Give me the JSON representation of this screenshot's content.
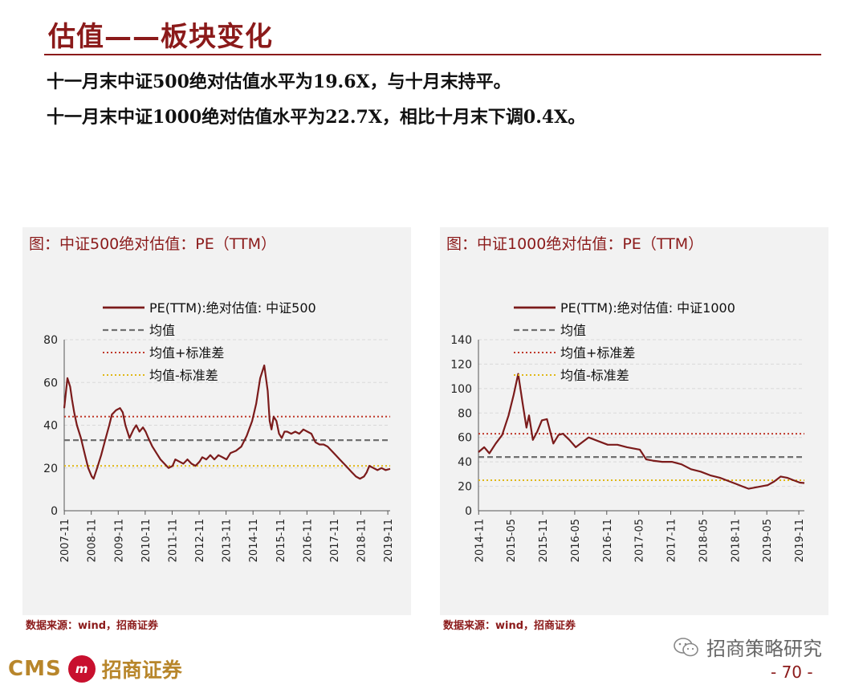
{
  "header": {
    "title": "估值——板块变化",
    "bullet1": "十一月末中证500绝对估值水平为19.6X，与十月末持平。",
    "bullet2": "十一月末中证1000绝对估值水平为22.7X，相比十月末下调0.4X。"
  },
  "colors": {
    "accent": "#8b1a1a",
    "series": "#7b1b1b",
    "mean": "#707070",
    "upper": "#c0392b",
    "lower": "#e0b818"
  },
  "chart_data": [
    {
      "type": "line",
      "title": "图：中证500绝对估值：PE（TTM）",
      "source": "数据来源：wind，招商证券",
      "legend": [
        "PE(TTM):绝对估值: 中证500",
        "均值",
        "均值+标准差",
        "均值-标准差"
      ],
      "legend_placement": "top",
      "ylim": [
        0,
        80
      ],
      "yticks": [
        0,
        20,
        40,
        60,
        80
      ],
      "xticks": [
        "2007-11",
        "2008-11",
        "2009-11",
        "2010-11",
        "2011-11",
        "2012-11",
        "2013-11",
        "2014-11",
        "2015-11",
        "2016-11",
        "2017-11",
        "2018-11",
        "2019-11"
      ],
      "x_range": [
        2007.83,
        2019.92
      ],
      "series": [
        {
          "name": "PE(TTM):绝对估值: 中证500",
          "x": [
            2007.83,
            2007.95,
            2008.05,
            2008.12,
            2008.2,
            2008.3,
            2008.45,
            2008.6,
            2008.72,
            2008.85,
            2008.92,
            2009.05,
            2009.2,
            2009.35,
            2009.5,
            2009.6,
            2009.75,
            2009.9,
            2010.0,
            2010.1,
            2010.25,
            2010.4,
            2010.5,
            2010.62,
            2010.75,
            2010.85,
            2010.95,
            2011.1,
            2011.25,
            2011.4,
            2011.55,
            2011.7,
            2011.85,
            2011.95,
            2012.1,
            2012.25,
            2012.4,
            2012.55,
            2012.7,
            2012.85,
            2012.95,
            2013.1,
            2013.25,
            2013.4,
            2013.55,
            2013.7,
            2013.85,
            2014.0,
            2014.2,
            2014.4,
            2014.6,
            2014.8,
            2014.95,
            2015.1,
            2015.25,
            2015.38,
            2015.45,
            2015.52,
            2015.6,
            2015.7,
            2015.8,
            2015.9,
            2016.0,
            2016.1,
            2016.25,
            2016.4,
            2016.55,
            2016.7,
            2016.85,
            2017.0,
            2017.15,
            2017.3,
            2017.45,
            2017.6,
            2017.75,
            2017.9,
            2018.05,
            2018.2,
            2018.35,
            2018.5,
            2018.65,
            2018.8,
            2018.95,
            2019.05,
            2019.15,
            2019.3,
            2019.45,
            2019.6,
            2019.75,
            2019.92
          ],
          "y": [
            48,
            62,
            58,
            52,
            46,
            40,
            34,
            26,
            20,
            16,
            15,
            20,
            26,
            33,
            40,
            45,
            47,
            48,
            46,
            40,
            34,
            38,
            40,
            37,
            39,
            37,
            34,
            30,
            27,
            24,
            22,
            20,
            21,
            24,
            23,
            22,
            24,
            22,
            21,
            23,
            25,
            24,
            26,
            24,
            26,
            25,
            24,
            27,
            28,
            30,
            35,
            42,
            50,
            62,
            68,
            56,
            42,
            38,
            44,
            42,
            36,
            34,
            37,
            37,
            36,
            37,
            36,
            38,
            37,
            36,
            32,
            31,
            31,
            30,
            28,
            26,
            24,
            22,
            20,
            18,
            16,
            15,
            16,
            18,
            21,
            20,
            19,
            20,
            19,
            19.6
          ]
        },
        {
          "name": "均值",
          "x": [
            2007.83,
            2019.92
          ],
          "y": [
            33,
            33
          ]
        },
        {
          "name": "均值+标准差",
          "x": [
            2007.83,
            2019.92
          ],
          "y": [
            44,
            44
          ]
        },
        {
          "name": "均值-标准差",
          "x": [
            2007.83,
            2019.92
          ],
          "y": [
            21,
            21
          ]
        }
      ]
    },
    {
      "type": "line",
      "title": "图：中证1000绝对估值：PE（TTM）",
      "source": "数据来源：wind，招商证券",
      "legend": [
        "PE(TTM):绝对估值: 中证1000",
        "均值",
        "均值+标准差",
        "均值-标准差"
      ],
      "legend_placement": "top",
      "ylim": [
        0,
        140
      ],
      "yticks": [
        0,
        20,
        40,
        60,
        80,
        100,
        120,
        140
      ],
      "xticks": [
        "2014-11",
        "2015-05",
        "2015-11",
        "2016-05",
        "2016-11",
        "2017-05",
        "2017-11",
        "2018-05",
        "2018-11",
        "2019-05",
        "2019-11"
      ],
      "x_range": [
        2014.83,
        2019.92
      ],
      "series": [
        {
          "name": "PE(TTM):绝对估值: 中证1000",
          "x": [
            2014.83,
            2014.92,
            2015.0,
            2015.1,
            2015.2,
            2015.3,
            2015.38,
            2015.45,
            2015.52,
            2015.58,
            2015.62,
            2015.68,
            2015.75,
            2015.82,
            2015.9,
            2016.0,
            2016.08,
            2016.15,
            2016.25,
            2016.35,
            2016.45,
            2016.55,
            2016.7,
            2016.85,
            2017.0,
            2017.15,
            2017.25,
            2017.35,
            2017.45,
            2017.55,
            2017.7,
            2017.85,
            2018.0,
            2018.15,
            2018.3,
            2018.45,
            2018.6,
            2018.75,
            2018.85,
            2018.95,
            2019.05,
            2019.15,
            2019.25,
            2019.35,
            2019.45,
            2019.55,
            2019.65,
            2019.75,
            2019.85,
            2019.92
          ],
          "y": [
            48,
            52,
            47,
            55,
            62,
            78,
            95,
            112,
            88,
            68,
            78,
            58,
            65,
            74,
            75,
            55,
            62,
            63,
            58,
            52,
            56,
            60,
            57,
            54,
            54,
            52,
            51,
            50,
            42,
            41,
            40,
            40,
            38,
            34,
            32,
            29,
            27,
            24,
            22,
            20,
            18,
            19,
            20,
            21,
            24,
            28,
            27,
            25,
            23,
            22.7
          ]
        },
        {
          "name": "均值",
          "x": [
            2014.83,
            2019.92
          ],
          "y": [
            44,
            44
          ]
        },
        {
          "name": "均值+标准差",
          "x": [
            2014.83,
            2019.92
          ],
          "y": [
            63,
            63
          ]
        },
        {
          "name": "均值-标准差",
          "x": [
            2014.83,
            2019.92
          ],
          "y": [
            25,
            25
          ]
        }
      ]
    }
  ],
  "footer": {
    "brand_en": "CMS",
    "badge": "m",
    "brand_cn": "招商证券",
    "wechat": "招商策略研究",
    "page": "- 70 -"
  }
}
